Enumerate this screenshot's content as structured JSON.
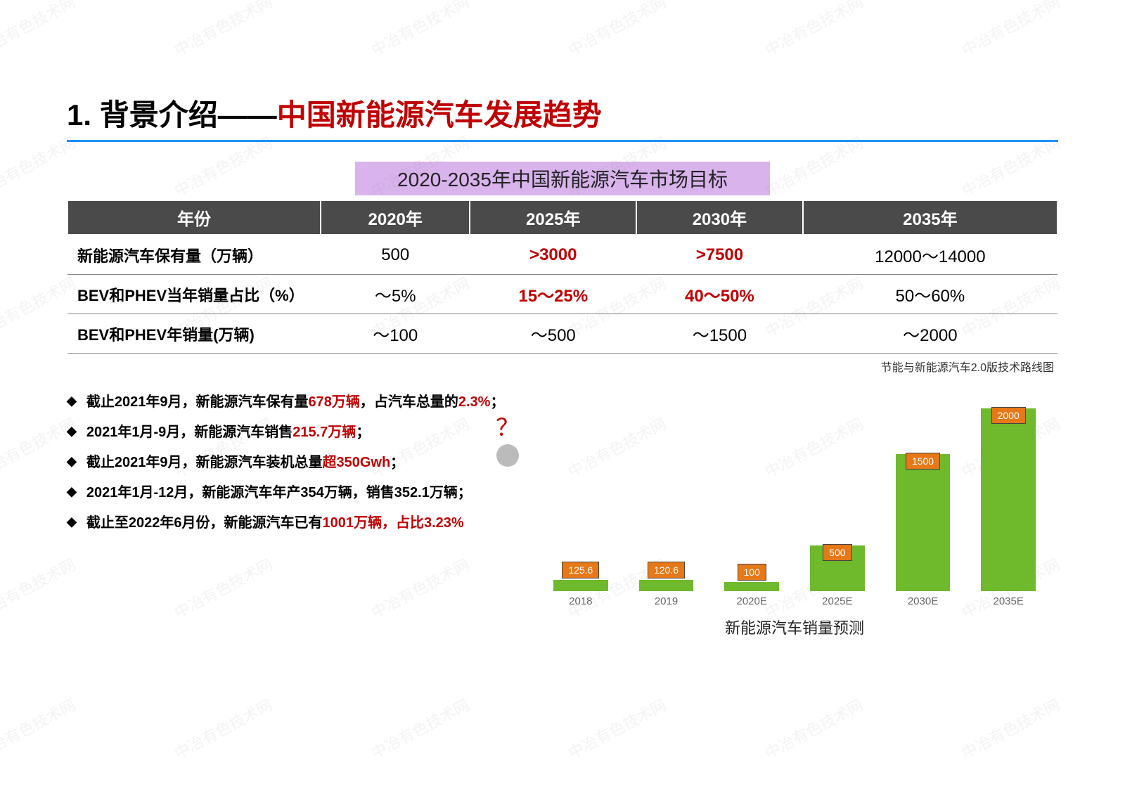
{
  "watermark_text": "中冶有色技术网",
  "heading": {
    "prefix": "1. 背景介绍——",
    "main": "中国新能源汽车发展趋势"
  },
  "subtitle": "2020-2035年中国新能源汽车市场目标",
  "table": {
    "header": [
      "年份",
      "2020年",
      "2025年",
      "2030年",
      "2035年"
    ],
    "rows": [
      {
        "label": "新能源汽车保有量（万辆）",
        "cells": [
          {
            "text": "500",
            "red": false
          },
          {
            "text": ">3000",
            "red": true
          },
          {
            "text": ">7500",
            "red": true
          },
          {
            "text": "12000～14000",
            "red": false
          }
        ]
      },
      {
        "label": "BEV和PHEV当年销量占比（%）",
        "cells": [
          {
            "text": "～5%",
            "red": false
          },
          {
            "text": "15～25%",
            "red": true
          },
          {
            "text": "40～50%",
            "red": true
          },
          {
            "text": "50～60%",
            "red": false
          }
        ]
      },
      {
        "label": "BEV和PHEV年销量(万辆)",
        "cells": [
          {
            "text": "～100",
            "red": false
          },
          {
            "text": "～500",
            "red": false
          },
          {
            "text": "～1500",
            "red": false
          },
          {
            "text": "～2000",
            "red": false
          }
        ]
      }
    ]
  },
  "source_note": "节能与新能源汽车2.0版技术路线图",
  "bullets": [
    {
      "pre": "截止2021年9月，新能源汽车保有量",
      "r1": "678万辆",
      "mid": "，占汽车总量的",
      "r2": "2.3%",
      "post": "；"
    },
    {
      "pre": "2021年1月-9月，新能源汽车销售",
      "r1": "215.7万辆",
      "mid": "",
      "r2": "",
      "post": "；"
    },
    {
      "pre": "截止2021年9月，新能源汽车装机总量",
      "r1": "超350Gwh",
      "mid": "",
      "r2": "",
      "post": "；"
    },
    {
      "pre": "2021年1月-12月，新能源汽车年产354万辆，销售352.1万辆；",
      "r1": "",
      "mid": "",
      "r2": "",
      "post": ""
    },
    {
      "pre": "截止至2022年6月份，新能源汽车已有",
      "r1": "1001万辆，占比3.23%",
      "mid": "",
      "r2": "",
      "post": ""
    }
  ],
  "thinker_mark": "？",
  "chart": {
    "title": "新能源汽车销量预测",
    "bar_color": "#6fb92c",
    "label_bg": "#e67817",
    "max_value": 2000,
    "bars": [
      {
        "x": "2018",
        "v": 125.6,
        "label": "125.6"
      },
      {
        "x": "2019",
        "v": 120.6,
        "label": "120.6"
      },
      {
        "x": "2020E",
        "v": 100,
        "label": "100"
      },
      {
        "x": "2025E",
        "v": 500,
        "label": "500"
      },
      {
        "x": "2030E",
        "v": 1500,
        "label": "1500"
      },
      {
        "x": "2035E",
        "v": 2000,
        "label": "2000"
      }
    ]
  }
}
